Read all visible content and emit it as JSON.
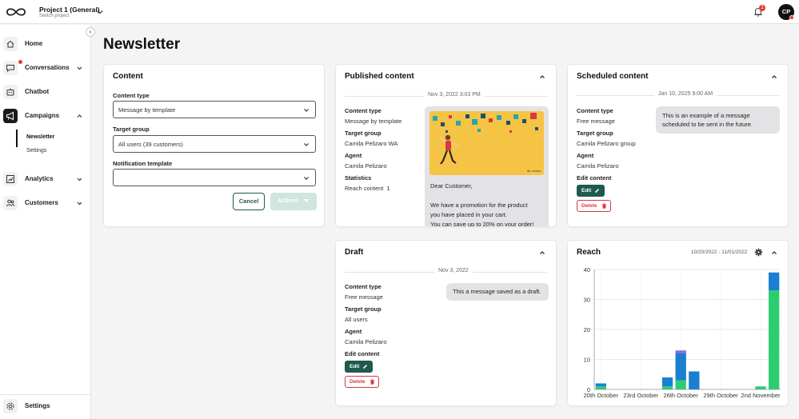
{
  "topbar": {
    "project_name": "Project 1 (General)",
    "project_sub": "Switch project",
    "notification_count": "1",
    "avatar_initials": "CP"
  },
  "sidebar": {
    "collapse_glyph": "‹",
    "items": [
      {
        "label": "Home",
        "icon": "home-icon"
      },
      {
        "label": "Conversations",
        "icon": "chat-icon"
      },
      {
        "label": "Chatbot",
        "icon": "bot-icon"
      },
      {
        "label": "Campaigns",
        "icon": "megaphone-icon"
      },
      {
        "label": "Analytics",
        "icon": "chart-icon"
      },
      {
        "label": "Customers",
        "icon": "users-icon"
      }
    ],
    "campaigns_sub": [
      "Newsletter",
      "Settings"
    ],
    "settings_label": "Settings"
  },
  "page": {
    "title": "Newsletter"
  },
  "content_card": {
    "title": "Content",
    "content_type_label": "Content type",
    "content_type_value": "Message by template",
    "target_group_label": "Target group",
    "target_group_value": "All users (39 customers)",
    "notification_template_label": "Notification template",
    "notification_template_value": "",
    "cancel_label": "Cancel",
    "actions_label": "Actions"
  },
  "published_card": {
    "title": "Published content",
    "date": "Nov 3, 2022 3:03 PM",
    "content_type_label": "Content type",
    "content_type_value": "Message by template",
    "target_group_label": "Target group",
    "target_group_value": "Camila Pelizaro WA",
    "agent_label": "Agent",
    "agent_value": "Camila Pelizaro",
    "statistics_label": "Statistics",
    "reach_text": "Reach content",
    "reach_value": "1",
    "image_caption": "db: zench",
    "message_lines": [
      "Dear Customer,",
      "",
      "We have a promotion for the product",
      "you have placed in your cart.",
      "You can save up to 20% on your order!"
    ]
  },
  "scheduled_card": {
    "title": "Scheduled content",
    "date": "Jan 10, 2025 9:00 AM",
    "content_type_label": "Content type",
    "content_type_value": "Free message",
    "target_group_label": "Target group",
    "target_group_value": "Camila Pelizaro group",
    "agent_label": "Agent",
    "agent_value": "Camila Pelizaro",
    "edit_content_label": "Edit content",
    "edit_label": "Edit",
    "delete_label": "Delete",
    "message_lines": [
      "This is an example of a message",
      "scheduled to be sent in the future."
    ]
  },
  "draft_card": {
    "title": "Draft",
    "date": "Nov 3, 2022",
    "content_type_label": "Content type",
    "content_type_value": "Free message",
    "target_group_label": "Target group",
    "target_group_value": "All users",
    "agent_label": "Agent",
    "agent_value": "Camila Pelizaro",
    "edit_content_label": "Edit content",
    "edit_label": "Edit",
    "delete_label": "Delete",
    "message": "This a message saved as a draft."
  },
  "reach_card": {
    "title": "Reach",
    "date_range": "10/20/2022 - 11/01/2022"
  },
  "colors": {
    "accent": "#1e5a4f",
    "danger": "#d93846",
    "bar_green": "#2ecc71",
    "bar_blue": "#1a7fd0",
    "bar_purple": "#8a6fd8",
    "bar_teal": "#2aa6a6",
    "promo_bg": "#f6c444"
  },
  "chart_data": {
    "type": "bar",
    "stacked": true,
    "x_tick_labels": [
      "20th October",
      "23rd October",
      "26th October",
      "29th October",
      "2nd November"
    ],
    "ylim": [
      0,
      40
    ],
    "y_ticks": [
      0,
      10,
      20,
      30,
      40
    ],
    "grid": true,
    "dates": [
      "Oct 20",
      "Oct 21",
      "Oct 22",
      "Oct 23",
      "Oct 24",
      "Oct 25",
      "Oct 26",
      "Oct 27",
      "Oct 28",
      "Oct 29",
      "Oct 30",
      "Oct 31",
      "Nov 1",
      "Nov 2"
    ],
    "series": [
      {
        "color": "#2ecc71",
        "values": [
          1,
          0,
          0,
          0,
          0,
          1,
          3,
          0,
          0,
          0,
          0,
          0,
          1,
          33
        ]
      },
      {
        "color": "#2aa6a6",
        "values": [
          0,
          0,
          0,
          0,
          0,
          0,
          0,
          0,
          0,
          0,
          0,
          0,
          0,
          0
        ]
      },
      {
        "color": "#1a7fd0",
        "values": [
          1,
          0,
          0,
          0,
          0,
          3,
          9,
          6,
          0,
          0,
          0,
          0,
          0,
          6
        ]
      },
      {
        "color": "#8a6fd8",
        "values": [
          0,
          0,
          0,
          0,
          0,
          0,
          1,
          0,
          0,
          0,
          0,
          0,
          0,
          0
        ]
      }
    ]
  }
}
